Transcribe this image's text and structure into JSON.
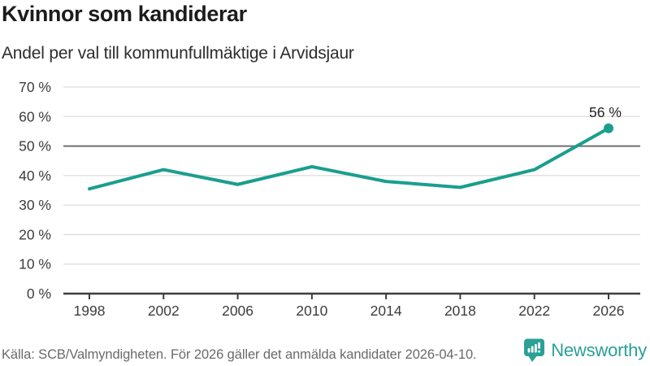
{
  "header": {
    "title": "Kvinnor som kandiderar",
    "subtitle": "Andel per val till kommunfullmäktige i Arvidsjaur"
  },
  "chart_data": {
    "type": "line",
    "title": "Kvinnor som kandiderar",
    "subtitle": "Andel per val till kommunfullmäktige i Arvidsjaur",
    "x": [
      "1998",
      "2002",
      "2006",
      "2010",
      "2014",
      "2018",
      "2022",
      "2026"
    ],
    "values": [
      35.5,
      42,
      37,
      43,
      38,
      36,
      42,
      56
    ],
    "unit": "%",
    "xlabel": "",
    "ylabel": "",
    "ylim": [
      0,
      70
    ],
    "grid": true,
    "legend": "none",
    "reference_line": 50,
    "yticks": [
      {
        "value": 0,
        "label": "0 %"
      },
      {
        "value": 10,
        "label": "10 %"
      },
      {
        "value": 20,
        "label": "20 %"
      },
      {
        "value": 30,
        "label": "30 %"
      },
      {
        "value": 40,
        "label": "40 %"
      },
      {
        "value": 50,
        "label": "50 %"
      },
      {
        "value": 60,
        "label": "60 %"
      },
      {
        "value": 70,
        "label": "70 %"
      }
    ],
    "annotations": [
      {
        "x": "2026",
        "label": "56 %"
      }
    ]
  },
  "footer": {
    "source": "Källa: SCB/Valmyndigheten. För 2026 gäller det anmälda kandidater 2026-04-10.",
    "brand": "Newsworthy"
  },
  "colors": {
    "accent": "#1a9e8e",
    "brand": "#2aa096",
    "grid": "#dcdcdc",
    "reference_line": "#6f6f6f",
    "axis": "#3c3c3c",
    "tick_text": "#3d3d3d",
    "title_text": "#1c1c1c",
    "footer_text": "#6a6a6a",
    "annotation_text": "#222222",
    "background": "#ffffff"
  }
}
